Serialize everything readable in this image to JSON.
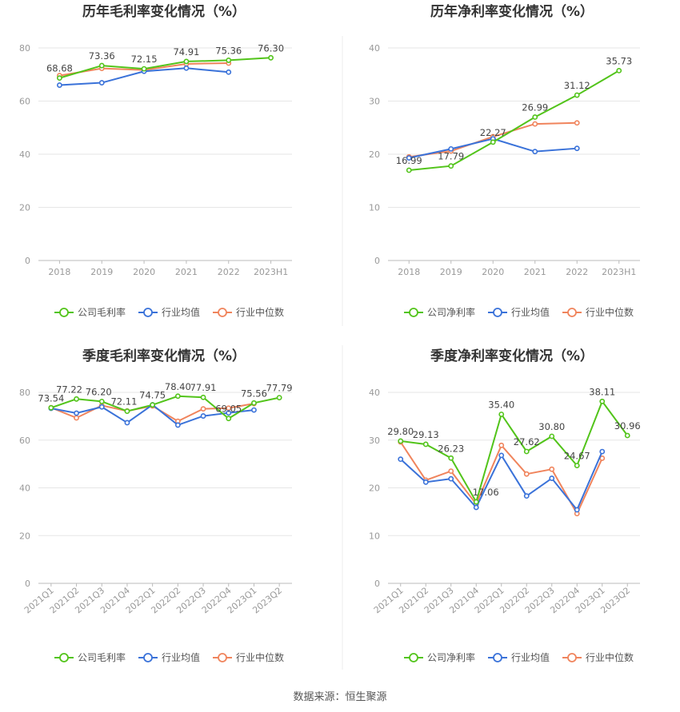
{
  "source_text": "数据来源：恒生聚源",
  "colors": {
    "company": "#52c41a",
    "avg": "#3a72d9",
    "median": "#f0845c",
    "grid": "#e6e6e6",
    "text": "#333333"
  },
  "chart_data": [
    {
      "type": "line",
      "title": "历年毛利率变化情况（%）",
      "categories": [
        "2018",
        "2019",
        "2020",
        "2021",
        "2022",
        "2023H1"
      ],
      "ylim": [
        0,
        80
      ],
      "yticks": [
        0,
        20,
        40,
        60,
        80
      ],
      "grid": true,
      "legend_position": "bottom",
      "rotate_x_labels": false,
      "series": [
        {
          "name": "公司毛利率",
          "key": "company",
          "values": [
            68.68,
            73.36,
            72.15,
            74.91,
            75.36,
            76.3
          ],
          "labels": [
            "68.68",
            "73.36",
            "72.15",
            "74.91",
            "75.36",
            "76.30"
          ]
        },
        {
          "name": "行业均值",
          "key": "avg",
          "values": [
            66.0,
            66.9,
            71.2,
            72.4,
            70.9,
            null
          ],
          "labels": []
        },
        {
          "name": "行业中位数",
          "key": "median",
          "values": [
            69.6,
            72.3,
            71.7,
            74.0,
            74.3,
            null
          ],
          "labels": []
        }
      ]
    },
    {
      "type": "line",
      "title": "历年净利率变化情况（%）",
      "categories": [
        "2018",
        "2019",
        "2020",
        "2021",
        "2022",
        "2023H1"
      ],
      "ylim": [
        0,
        40
      ],
      "yticks": [
        0,
        10,
        20,
        30,
        40
      ],
      "grid": true,
      "legend_position": "bottom",
      "rotate_x_labels": false,
      "series": [
        {
          "name": "公司净利率",
          "key": "company",
          "values": [
            16.99,
            17.79,
            22.27,
            26.99,
            31.12,
            35.73
          ],
          "labels": [
            "16.99",
            "17.79",
            "22.27",
            "26.99",
            "31.12",
            "35.73"
          ]
        },
        {
          "name": "行业均值",
          "key": "avg",
          "values": [
            19.3,
            21.0,
            22.9,
            20.5,
            21.1,
            null
          ],
          "labels": []
        },
        {
          "name": "行业中位数",
          "key": "median",
          "values": [
            19.5,
            20.6,
            23.3,
            25.7,
            25.9,
            null
          ],
          "labels": []
        }
      ]
    },
    {
      "type": "line",
      "title": "季度毛利率变化情况（%）",
      "categories": [
        "2021Q1",
        "2021Q2",
        "2021Q3",
        "2021Q4",
        "2022Q1",
        "2022Q2",
        "2022Q3",
        "2022Q4",
        "2023Q1",
        "2023Q2"
      ],
      "ylim": [
        0,
        80
      ],
      "yticks": [
        0,
        20,
        40,
        60,
        80
      ],
      "grid": true,
      "legend_position": "bottom",
      "rotate_x_labels": true,
      "series": [
        {
          "name": "公司毛利率",
          "key": "company",
          "values": [
            73.54,
            77.22,
            76.2,
            72.11,
            74.75,
            78.4,
            77.91,
            69.05,
            75.56,
            77.79
          ],
          "labels": [
            "73.54",
            "77.22",
            "76.20",
            "72.11",
            "74.75",
            "78.40",
            "77.91",
            "69.05",
            "75.56",
            "77.79"
          ]
        },
        {
          "name": "行业均值",
          "key": "avg",
          "values": [
            73.3,
            71.3,
            73.9,
            67.3,
            74.8,
            66.3,
            70.1,
            71.4,
            72.6,
            null
          ],
          "labels": []
        },
        {
          "name": "行业中位数",
          "key": "median",
          "values": [
            73.6,
            69.3,
            74.5,
            72.2,
            74.3,
            67.9,
            73.1,
            73.4,
            75.3,
            null
          ],
          "labels": []
        }
      ]
    },
    {
      "type": "line",
      "title": "季度净利率变化情况（%）",
      "categories": [
        "2021Q1",
        "2021Q2",
        "2021Q3",
        "2021Q4",
        "2022Q1",
        "2022Q2",
        "2022Q3",
        "2022Q4",
        "2023Q1",
        "2023Q2"
      ],
      "ylim": [
        0,
        40
      ],
      "yticks": [
        0,
        10,
        20,
        30,
        40
      ],
      "grid": true,
      "legend_position": "bottom",
      "rotate_x_labels": true,
      "series": [
        {
          "name": "公司净利率",
          "key": "company",
          "values": [
            29.8,
            29.13,
            26.23,
            17.06,
            35.4,
            27.62,
            30.8,
            24.67,
            38.11,
            30.96
          ],
          "labels": [
            "29.80",
            "29.13",
            "26.23",
            "17.06",
            "35.40",
            "27.62",
            "30.80",
            "24.67",
            "38.11",
            "30.96"
          ]
        },
        {
          "name": "行业均值",
          "key": "avg",
          "values": [
            26.0,
            21.2,
            21.9,
            15.9,
            26.8,
            18.3,
            22.0,
            15.4,
            27.6,
            null
          ],
          "labels": []
        },
        {
          "name": "行业中位数",
          "key": "median",
          "values": [
            29.6,
            21.6,
            23.5,
            16.6,
            28.9,
            22.9,
            23.9,
            14.6,
            26.2,
            null
          ],
          "labels": []
        }
      ]
    }
  ]
}
